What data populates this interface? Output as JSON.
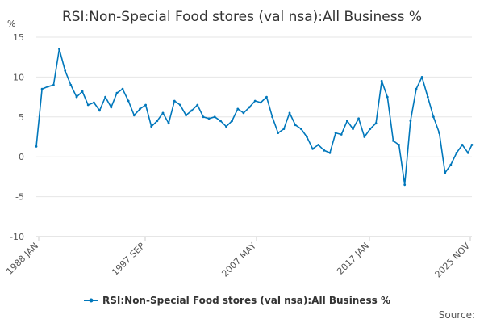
{
  "chart_data": {
    "type": "line",
    "title": "RSI:Non-Special Food stores (val nsa):All Business %",
    "ylabel": "%",
    "ylim": [
      -10,
      15
    ],
    "yticks": [
      15,
      10,
      5,
      0,
      -5,
      -10
    ],
    "xticks": [
      "1988 JAN",
      "1997 SEP",
      "2007 MAY",
      "2017 JAN",
      "2025 NOV"
    ],
    "xrange": [
      "1988-01",
      "2025-11"
    ],
    "grid": true,
    "legend_position": "bottom",
    "series": [
      {
        "name": "RSI:Non-Special Food stores (val nsa):All Business %",
        "color": "#0077bb",
        "x": [
          "1988-01",
          "1988-07",
          "1989-01",
          "1989-07",
          "1990-01",
          "1990-07",
          "1991-01",
          "1991-07",
          "1992-01",
          "1992-07",
          "1993-01",
          "1993-07",
          "1994-01",
          "1994-07",
          "1995-01",
          "1995-07",
          "1996-01",
          "1996-07",
          "1997-01",
          "1997-07",
          "1998-01",
          "1998-07",
          "1999-01",
          "1999-07",
          "2000-01",
          "2000-07",
          "2001-01",
          "2001-07",
          "2002-01",
          "2002-07",
          "2003-01",
          "2003-07",
          "2004-01",
          "2004-07",
          "2005-01",
          "2005-07",
          "2006-01",
          "2006-07",
          "2007-01",
          "2007-07",
          "2008-01",
          "2008-07",
          "2009-01",
          "2009-07",
          "2010-01",
          "2010-07",
          "2011-01",
          "2011-07",
          "2012-01",
          "2012-07",
          "2013-01",
          "2013-07",
          "2014-01",
          "2014-07",
          "2015-01",
          "2015-07",
          "2016-01",
          "2016-07",
          "2017-01",
          "2017-07",
          "2018-01",
          "2018-07",
          "2019-01",
          "2019-07",
          "2020-01",
          "2020-07",
          "2021-01",
          "2021-07",
          "2022-01",
          "2022-07",
          "2023-01",
          "2023-07",
          "2024-01",
          "2024-07",
          "2025-01",
          "2025-07",
          "2025-11"
        ],
        "values": [
          1.3,
          8.5,
          8.8,
          9.0,
          13.5,
          10.8,
          9.0,
          7.5,
          8.2,
          6.5,
          6.8,
          5.8,
          7.5,
          6.2,
          8.0,
          8.5,
          7.0,
          5.2,
          6.0,
          6.5,
          3.8,
          4.5,
          5.5,
          4.2,
          7.0,
          6.5,
          5.2,
          5.8,
          6.5,
          5.0,
          4.8,
          5.0,
          4.5,
          3.8,
          4.5,
          6.0,
          5.5,
          6.2,
          7.0,
          6.8,
          7.5,
          5.0,
          3.0,
          3.5,
          5.5,
          4.0,
          3.5,
          2.5,
          1.0,
          1.5,
          0.8,
          0.5,
          3.0,
          2.8,
          4.5,
          3.5,
          4.8,
          2.5,
          3.5,
          4.2,
          9.5,
          7.5,
          2.0,
          1.5,
          -3.5,
          4.5,
          8.5,
          10.0,
          7.5,
          5.0,
          3.0,
          -2.0,
          -1.0,
          0.5,
          1.5,
          0.5,
          1.5
        ]
      }
    ]
  },
  "legend": {
    "label": "RSI:Non-Special Food stores (val nsa):All Business %"
  },
  "source_label": "Source:"
}
